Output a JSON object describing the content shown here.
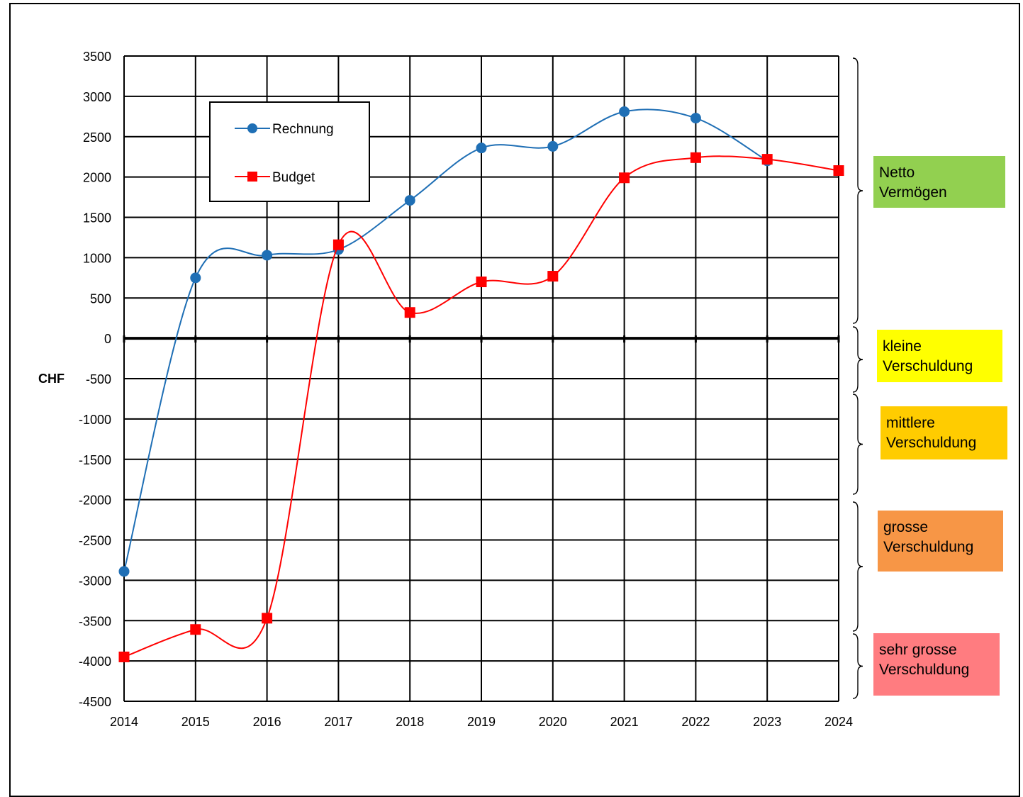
{
  "chart_data": {
    "type": "line",
    "ylabel": "CHF",
    "x": [
      2014,
      2015,
      2016,
      2017,
      2018,
      2019,
      2020,
      2021,
      2022,
      2023,
      2024
    ],
    "ylim": [
      -4500,
      3500
    ],
    "yticks": [
      3500,
      3000,
      2500,
      2000,
      1500,
      1000,
      500,
      0,
      -500,
      -1000,
      -1500,
      -2000,
      -2500,
      -3000,
      -3500,
      -4000,
      -4500
    ],
    "grid": true,
    "legend_position": "top-left",
    "series": [
      {
        "name": "Rechnung",
        "color": "#1f6fb5",
        "marker": "circle",
        "values": [
          -2890,
          750,
          1030,
          1100,
          1710,
          2360,
          2380,
          2810,
          2730,
          2200,
          null
        ]
      },
      {
        "name": "Budget",
        "color": "#ff0000",
        "marker": "square",
        "values": [
          -3950,
          -3610,
          -3470,
          1160,
          320,
          700,
          770,
          1990,
          2240,
          2220,
          2080
        ]
      }
    ],
    "bands": [
      {
        "label": "Netto\nVermögen",
        "color": "#92d050",
        "range": [
          0,
          3500
        ]
      },
      {
        "label": "kleine\nVerschuldung",
        "color": "#ffff00",
        "range": [
          -700,
          0
        ]
      },
      {
        "label": "mittlere\nVerschuldung",
        "color": "#ffcc00",
        "range": [
          -2000,
          -700
        ]
      },
      {
        "label": "grosse\nVerschuldung",
        "color": "#f79646",
        "range": [
          -3600,
          -2000
        ]
      },
      {
        "label": "sehr grosse\nVerschuldung",
        "color": "#ff7c80",
        "range": [
          -4500,
          -3600
        ]
      }
    ]
  }
}
